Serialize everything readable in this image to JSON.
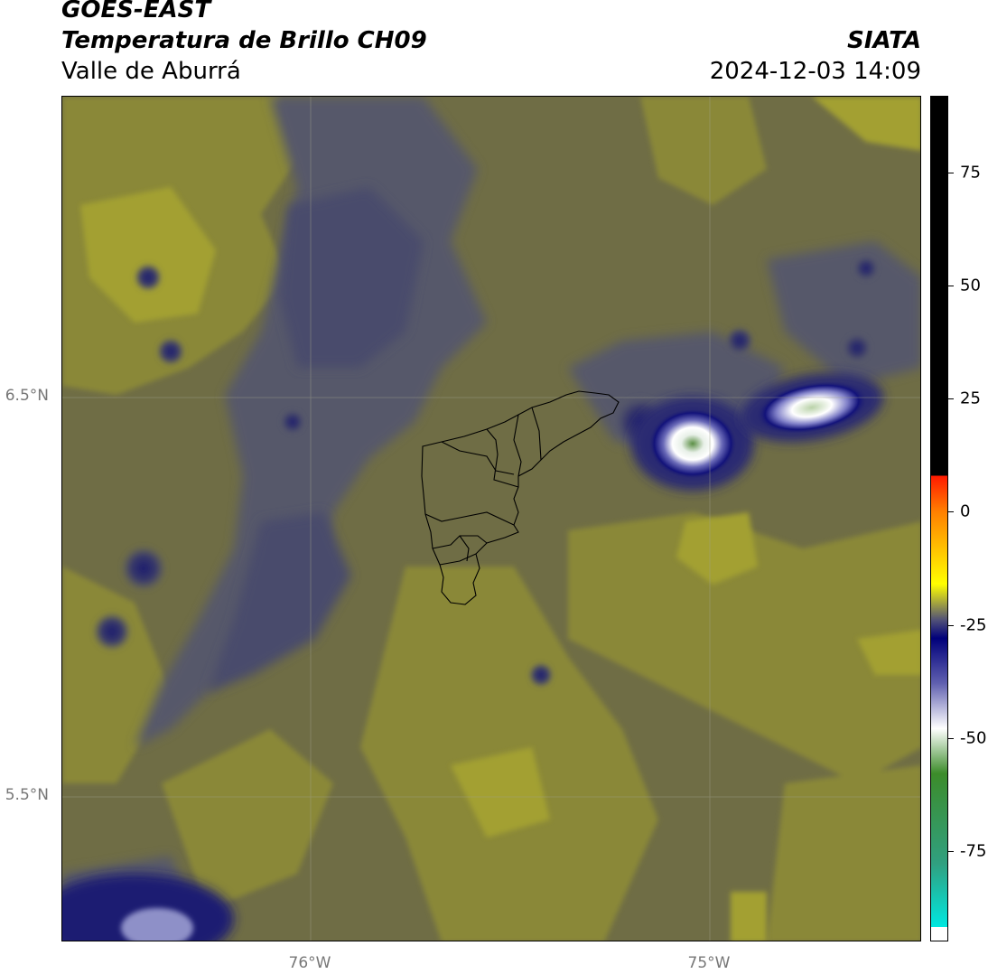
{
  "header": {
    "satellite": "GOES-EAST",
    "product": "Temperatura de Brillo CH09",
    "region": "Valle de Aburrá",
    "organization": "SIATA",
    "timestamp": "2024-12-03 14:09"
  },
  "map": {
    "latitude_labels": [
      "6.5°N",
      "5.5°N"
    ],
    "longitude_labels": [
      "76°W",
      "75°W"
    ],
    "gridlines": true,
    "colors": {
      "background_field": "#6b6b45",
      "warm_olive": "#8c8a3a",
      "bright_olive": "#a3a032",
      "cool_slate": "#55576a",
      "cold_navy": "#1a1a7a",
      "very_cold_white": "#f2f2f2",
      "coldest_green": "#5b8f45",
      "boundary_line": "#000000",
      "grid_line": "#9a9a9a"
    }
  },
  "colorbar": {
    "ticks": [
      "75",
      "50",
      "25",
      "0",
      "-25",
      "-50",
      "-75"
    ],
    "tick_values": [
      75,
      50,
      25,
      0,
      -25,
      -50,
      -75
    ],
    "range": [
      -95,
      92
    ],
    "stops": [
      {
        "value": 92,
        "color": "#000000"
      },
      {
        "value": 8,
        "color": "#000000"
      },
      {
        "value": 8,
        "color": "#ff1a00"
      },
      {
        "value": 0,
        "color": "#ff8000"
      },
      {
        "value": -10,
        "color": "#ffd000"
      },
      {
        "value": -16,
        "color": "#ffff00"
      },
      {
        "value": -20,
        "color": "#a8a83c"
      },
      {
        "value": -24,
        "color": "#505078"
      },
      {
        "value": -28,
        "color": "#00007a"
      },
      {
        "value": -38,
        "color": "#6060b0"
      },
      {
        "value": -48,
        "color": "#ffffff"
      },
      {
        "value": -58,
        "color": "#3c8c2a"
      },
      {
        "value": -78,
        "color": "#30a080"
      },
      {
        "value": -92,
        "color": "#00e8e0"
      },
      {
        "value": -92,
        "color": "#ffffff"
      },
      {
        "value": -95,
        "color": "#ffffff"
      }
    ]
  }
}
